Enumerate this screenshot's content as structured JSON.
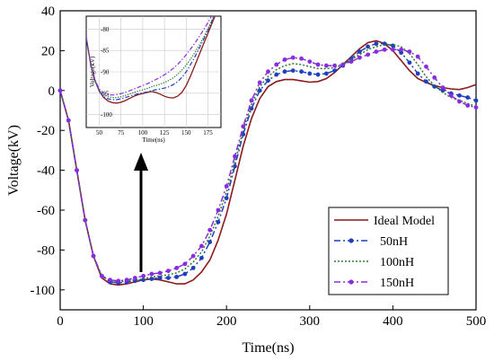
{
  "chart_data": [
    {
      "type": "line",
      "xlabel": "Time(ns)",
      "ylabel": "Voltage(kV)",
      "xlim": [
        0,
        500
      ],
      "ylim": [
        -110,
        40
      ],
      "xticks": [
        0,
        100,
        200,
        300,
        400,
        500
      ],
      "yticks": [
        -100,
        -80,
        -60,
        -40,
        -20,
        0,
        20,
        40
      ],
      "legend_position": "bottom-right",
      "annotation": "arrow pointing up from the curve minimum near 100 ns toward the inset",
      "series": [
        {
          "name": "Ideal Model",
          "color": "#8b1a1a",
          "style": "solid",
          "x": [
            0,
            10,
            20,
            30,
            40,
            50,
            60,
            70,
            80,
            90,
            100,
            110,
            120,
            130,
            140,
            150,
            160,
            170,
            180,
            190,
            200,
            210,
            220,
            230,
            240,
            250,
            260,
            270,
            280,
            290,
            300,
            310,
            320,
            330,
            340,
            350,
            360,
            370,
            380,
            390,
            400,
            410,
            420,
            430,
            440,
            450,
            460,
            470,
            480,
            490,
            500
          ],
          "y": [
            0,
            -15,
            -40,
            -65,
            -83,
            -94,
            -97,
            -97.5,
            -97,
            -96,
            -95,
            -94.5,
            -95,
            -96,
            -97,
            -97,
            -95,
            -91,
            -85,
            -75,
            -62,
            -45,
            -28,
            -14,
            -4,
            2,
            4.5,
            5.5,
            5.5,
            4.8,
            4.2,
            4.5,
            6,
            9,
            13,
            17,
            21,
            24,
            25,
            23.5,
            20,
            15,
            10,
            6,
            4,
            2.5,
            1.5,
            0.8,
            0.5,
            1.5,
            3
          ]
        },
        {
          "name": "50nH",
          "color": "#1f3fbf",
          "style": "dash-dot-marker",
          "x": [
            0,
            10,
            20,
            30,
            40,
            50,
            60,
            70,
            80,
            90,
            100,
            110,
            120,
            130,
            140,
            150,
            160,
            170,
            180,
            190,
            200,
            210,
            220,
            230,
            240,
            250,
            260,
            270,
            280,
            290,
            300,
            310,
            320,
            330,
            340,
            350,
            360,
            370,
            380,
            390,
            400,
            410,
            420,
            430,
            440,
            450,
            460,
            470,
            480,
            490,
            500
          ],
          "y": [
            0,
            -15,
            -40,
            -65,
            -83,
            -93,
            -96,
            -96.5,
            -96,
            -95.5,
            -95,
            -94.5,
            -94,
            -94,
            -93.5,
            -92,
            -89,
            -84,
            -76,
            -66,
            -54,
            -38,
            -22,
            -9,
            0,
            5,
            8,
            9.5,
            10,
            9.5,
            8.5,
            8,
            8.5,
            10,
            12.5,
            16,
            19.5,
            22,
            23.5,
            23.5,
            22.5,
            19,
            14,
            8.5,
            4.5,
            2,
            0,
            -1.5,
            -2.5,
            -3.5,
            -5
          ]
        },
        {
          "name": "100nH",
          "color": "#2e7d32",
          "style": "dotted",
          "x": [
            0,
            10,
            20,
            30,
            40,
            50,
            60,
            70,
            80,
            90,
            100,
            110,
            120,
            130,
            140,
            150,
            160,
            170,
            180,
            190,
            200,
            210,
            220,
            230,
            240,
            250,
            260,
            270,
            280,
            290,
            300,
            310,
            320,
            330,
            340,
            350,
            360,
            370,
            380,
            390,
            400,
            410,
            420,
            430,
            440,
            450,
            460,
            470,
            480,
            490,
            500
          ],
          "y": [
            0,
            -15,
            -40,
            -65,
            -83,
            -93,
            -95.5,
            -96,
            -95.5,
            -95,
            -94.5,
            -93.5,
            -93,
            -92.5,
            -91.5,
            -89.5,
            -86,
            -81,
            -73,
            -63,
            -51,
            -36,
            -20,
            -7,
            2,
            7,
            10.5,
            12.5,
            13.5,
            13,
            12,
            11,
            11,
            11.5,
            13,
            15.5,
            18,
            20.5,
            22,
            23,
            23,
            22,
            18.5,
            13,
            7,
            2.5,
            -1,
            -3.5,
            -5,
            -6.5,
            -8
          ]
        },
        {
          "name": "150nH",
          "color": "#8a2be2",
          "style": "dash-dot-marker",
          "x": [
            0,
            10,
            20,
            30,
            40,
            50,
            60,
            70,
            80,
            90,
            100,
            110,
            120,
            130,
            140,
            150,
            160,
            170,
            180,
            190,
            200,
            210,
            220,
            230,
            240,
            250,
            260,
            270,
            280,
            290,
            300,
            310,
            320,
            330,
            340,
            350,
            360,
            370,
            380,
            390,
            400,
            410,
            420,
            430,
            440,
            450,
            460,
            470,
            480,
            490,
            500
          ],
          "y": [
            0,
            -15,
            -40,
            -65,
            -83,
            -93,
            -95,
            -95.5,
            -95,
            -94,
            -93,
            -92,
            -91.5,
            -90.5,
            -89,
            -87,
            -83,
            -78,
            -70,
            -60,
            -48,
            -33,
            -18,
            -5,
            4,
            9.5,
            13,
            15.5,
            16.5,
            16,
            14.5,
            13,
            12.5,
            12.5,
            13,
            14.5,
            16.5,
            18,
            19.5,
            20.5,
            20.5,
            20.5,
            19.5,
            17,
            12,
            6.5,
            1.5,
            -2.5,
            -5.5,
            -7.5,
            -8.5
          ]
        }
      ]
    },
    {
      "type": "line",
      "role": "inset",
      "xlabel": "Time(ns)",
      "ylabel": "Voltage(kV)",
      "xlim": [
        35,
        190
      ],
      "ylim": [
        -103,
        -77
      ],
      "xticks": [
        50,
        75,
        100,
        125,
        150,
        175
      ],
      "yticks": [
        -100,
        -95,
        -90,
        -85,
        -80
      ],
      "series": [
        {
          "name": "Ideal Model",
          "color": "#8b1a1a",
          "style": "solid",
          "x": [
            35,
            40,
            45,
            50,
            55,
            60,
            65,
            70,
            75,
            80,
            85,
            90,
            95,
            100,
            105,
            110,
            115,
            120,
            125,
            130,
            135,
            140,
            145,
            150,
            155,
            160,
            165,
            170,
            175,
            180,
            185
          ],
          "y": [
            -82,
            -88,
            -92,
            -94.5,
            -96,
            -96.8,
            -97.2,
            -97.3,
            -97.1,
            -96.7,
            -96.2,
            -95.7,
            -95.3,
            -95.1,
            -94.8,
            -94.6,
            -94.8,
            -95.2,
            -95.7,
            -96,
            -96.1,
            -95.7,
            -94.8,
            -93.2,
            -91,
            -88.5,
            -86,
            -83.5,
            -81,
            -78.5,
            -76
          ]
        },
        {
          "name": "50nH",
          "color": "#1f3fbf",
          "style": "dash-dot",
          "x": [
            35,
            40,
            45,
            50,
            55,
            60,
            65,
            70,
            75,
            80,
            85,
            90,
            95,
            100,
            105,
            110,
            115,
            120,
            125,
            130,
            135,
            140,
            145,
            150,
            155,
            160,
            165,
            170,
            175,
            180,
            185
          ],
          "y": [
            -82,
            -88,
            -92,
            -94.5,
            -95.8,
            -96.3,
            -96.5,
            -96.5,
            -96.3,
            -96,
            -95.7,
            -95.4,
            -95.1,
            -94.9,
            -94.7,
            -94.4,
            -94.2,
            -94,
            -93.8,
            -93.5,
            -93,
            -92.3,
            -91.3,
            -90,
            -88.3,
            -86.5,
            -84.5,
            -82.5,
            -80.3,
            -78,
            -75.8
          ]
        },
        {
          "name": "100nH",
          "color": "#2e7d32",
          "style": "dotted",
          "x": [
            35,
            40,
            45,
            50,
            55,
            60,
            65,
            70,
            75,
            80,
            85,
            90,
            95,
            100,
            105,
            110,
            115,
            120,
            125,
            130,
            135,
            140,
            145,
            150,
            155,
            160,
            165,
            170,
            175,
            180,
            185
          ],
          "y": [
            -82,
            -88,
            -92,
            -94.3,
            -95.4,
            -95.8,
            -96,
            -96,
            -95.8,
            -95.5,
            -95.2,
            -94.8,
            -94.5,
            -94.2,
            -93.9,
            -93.5,
            -93.2,
            -92.9,
            -92.5,
            -92,
            -91.4,
            -90.6,
            -89.6,
            -88.4,
            -87,
            -85.5,
            -83.8,
            -82,
            -80,
            -77.8,
            -75.6
          ]
        },
        {
          "name": "150nH",
          "color": "#8a2be2",
          "style": "dash-dot",
          "x": [
            35,
            40,
            45,
            50,
            55,
            60,
            65,
            70,
            75,
            80,
            85,
            90,
            95,
            100,
            105,
            110,
            115,
            120,
            125,
            130,
            135,
            140,
            145,
            150,
            155,
            160,
            165,
            170,
            175,
            180,
            185
          ],
          "y": [
            -82,
            -88,
            -91.8,
            -94,
            -95,
            -95.3,
            -95.4,
            -95.3,
            -95.1,
            -94.8,
            -94.4,
            -94,
            -93.6,
            -93.2,
            -92.8,
            -92.3,
            -91.8,
            -91.3,
            -90.7,
            -90,
            -89.2,
            -88.3,
            -87.2,
            -86,
            -84.7,
            -83.3,
            -81.8,
            -80.2,
            -78.5,
            -76.7,
            -74.9
          ]
        }
      ]
    }
  ]
}
